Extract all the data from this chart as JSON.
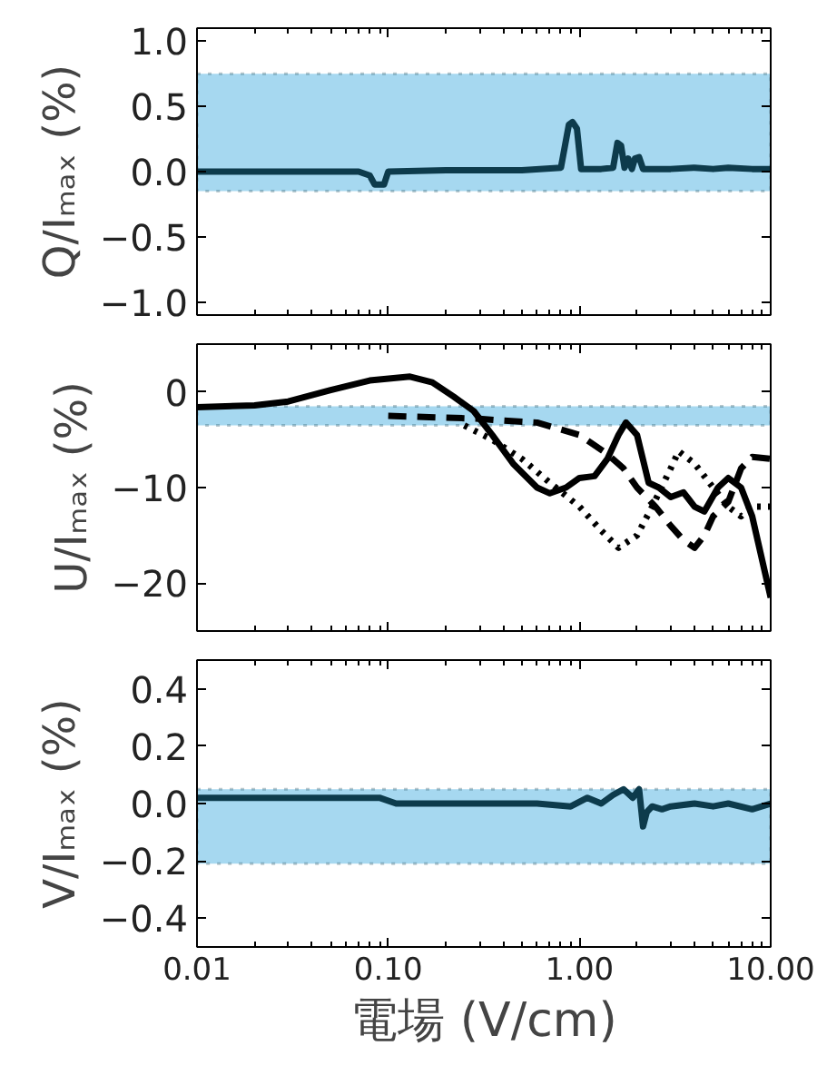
{
  "chart_data": [
    {
      "type": "line",
      "ylabel": "Q/Iₘₐₓ (%)",
      "log": "x",
      "grid": false,
      "tick_labels": "y",
      "xlim": [
        0.01,
        10
      ],
      "xticks": [
        {
          "value": 0.01,
          "label": null
        },
        {
          "value": 0.1,
          "label": null
        },
        {
          "value": 1,
          "label": null
        },
        {
          "value": 10,
          "label": null
        }
      ],
      "ylim": [
        -1.1,
        1.1
      ],
      "yticks": [
        {
          "value": -1,
          "label": "−1.0"
        },
        {
          "value": -0.5,
          "label": "−0.5"
        },
        {
          "value": 0,
          "label": "0.0"
        },
        {
          "value": 0.5,
          "label": "0.5"
        },
        {
          "value": 1,
          "label": "1.0"
        }
      ],
      "bands": [
        {
          "axis": "y",
          "from": -0.15,
          "to": 0.75,
          "color": "#a6d8f0"
        }
      ],
      "series": [
        {
          "color": "#0d3b4c",
          "line_style": "solid",
          "x": [
            0.01,
            0.03,
            0.07,
            0.08,
            0.085,
            0.095,
            0.1,
            0.2,
            0.5,
            0.8,
            0.88,
            0.92,
            0.97,
            1.02,
            1.3,
            1.5,
            1.58,
            1.65,
            1.72,
            1.8,
            1.88,
            1.95,
            2.05,
            2.15,
            2.3,
            3,
            4,
            5,
            6,
            8,
            10
          ],
          "values": [
            0,
            0,
            0,
            -0.03,
            -0.1,
            -0.1,
            0,
            0.01,
            0.01,
            0.03,
            0.36,
            0.38,
            0.33,
            0.02,
            0.02,
            0.03,
            0.22,
            0.2,
            0.03,
            0.1,
            0.02,
            0.1,
            0.11,
            0.02,
            0.02,
            0.02,
            0.03,
            0.02,
            0.03,
            0.02,
            0.02
          ]
        }
      ]
    },
    {
      "type": "line",
      "ylabel": "U/Iₘₐₓ (%)",
      "log": "x",
      "grid": false,
      "tick_labels": "y",
      "xlim": [
        0.01,
        10
      ],
      "xticks": [
        {
          "value": 0.01,
          "label": null
        },
        {
          "value": 0.1,
          "label": null
        },
        {
          "value": 1,
          "label": null
        },
        {
          "value": 10,
          "label": null
        }
      ],
      "ylim": [
        -25,
        5
      ],
      "yticks": [
        {
          "value": -20,
          "label": "−20"
        },
        {
          "value": -10,
          "label": "−10"
        },
        {
          "value": 0,
          "label": "0"
        }
      ],
      "bands": [
        {
          "axis": "y",
          "from": -3.5,
          "to": -1.5,
          "color": "#a6d8f0"
        }
      ],
      "series": [
        {
          "color": "#000000",
          "line_style": "solid",
          "x": [
            0.01,
            0.02,
            0.03,
            0.05,
            0.08,
            0.13,
            0.17,
            0.22,
            0.28,
            0.35,
            0.45,
            0.6,
            0.7,
            0.85,
            1.0,
            1.2,
            1.4,
            1.6,
            1.75,
            2.0,
            2.3,
            2.6,
            3,
            3.5,
            4,
            4.5,
            5.3,
            6,
            7,
            8,
            10
          ],
          "values": [
            -1.6,
            -1.4,
            -1.0,
            0.2,
            1.2,
            1.6,
            1.0,
            -0.5,
            -2,
            -4.5,
            -7.5,
            -10,
            -10.6,
            -10,
            -9,
            -8.8,
            -7,
            -4.5,
            -3.2,
            -4.5,
            -9.5,
            -10,
            -11,
            -10.5,
            -12,
            -12.5,
            -10,
            -9,
            -10,
            -13,
            -21.5
          ]
        },
        {
          "color": "#000000",
          "line_style": "dashed",
          "x": [
            0.1,
            0.3,
            0.4,
            0.6,
            1.0,
            1.4,
            1.7,
            2.0,
            2.5,
            3,
            3.5,
            4,
            4.5,
            5,
            6,
            7,
            8,
            10
          ],
          "values": [
            -2.5,
            -2.8,
            -3,
            -3.2,
            -4.5,
            -6.5,
            -8,
            -10,
            -12,
            -14,
            -15.5,
            -16.3,
            -15,
            -13,
            -11.5,
            -8,
            -6.8,
            -7
          ]
        },
        {
          "color": "#000000",
          "line_style": "dotted",
          "x": [
            0.25,
            0.35,
            0.5,
            0.7,
            1.0,
            1.3,
            1.6,
            2.0,
            2.4,
            3,
            3.3,
            4,
            5,
            6,
            7,
            8,
            10
          ],
          "values": [
            -3.5,
            -5,
            -7,
            -9.5,
            -12,
            -14.5,
            -16.3,
            -15,
            -12,
            -8,
            -6.2,
            -7.5,
            -10,
            -12,
            -13,
            -12,
            -12
          ]
        }
      ]
    },
    {
      "type": "line",
      "ylabel": "V/Iₘₐₓ (%)",
      "xlabel": "電場 (V/cm)",
      "log": "x",
      "grid": false,
      "xlim": [
        0.01,
        10
      ],
      "xticks": [
        {
          "value": 0.01,
          "label": "0.01"
        },
        {
          "value": 0.1,
          "label": "0.10"
        },
        {
          "value": 1,
          "label": "1.00"
        },
        {
          "value": 10,
          "label": "10.00"
        }
      ],
      "ylim": [
        -0.5,
        0.5
      ],
      "yticks": [
        {
          "value": -0.4,
          "label": "−0.4"
        },
        {
          "value": -0.2,
          "label": "−0.2"
        },
        {
          "value": 0,
          "label": "0.0"
        },
        {
          "value": 0.2,
          "label": "0.2"
        },
        {
          "value": 0.4,
          "label": "0.4"
        }
      ],
      "bands": [
        {
          "axis": "y",
          "from": -0.21,
          "to": 0.05,
          "color": "#a6d8f0"
        }
      ],
      "series": [
        {
          "color": "#0d3b4c",
          "line_style": "solid",
          "x": [
            0.01,
            0.05,
            0.09,
            0.11,
            0.3,
            0.6,
            0.9,
            1.1,
            1.3,
            1.5,
            1.7,
            1.9,
            2.05,
            2.15,
            2.25,
            2.4,
            2.7,
            3,
            4,
            5,
            6,
            8,
            10
          ],
          "values": [
            0.02,
            0.02,
            0.02,
            0.0,
            0.0,
            0.0,
            -0.01,
            0.02,
            0.0,
            0.03,
            0.05,
            0.02,
            0.05,
            -0.08,
            -0.03,
            -0.01,
            -0.02,
            -0.01,
            0.0,
            -0.01,
            0.0,
            -0.02,
            0.0
          ]
        }
      ]
    }
  ]
}
